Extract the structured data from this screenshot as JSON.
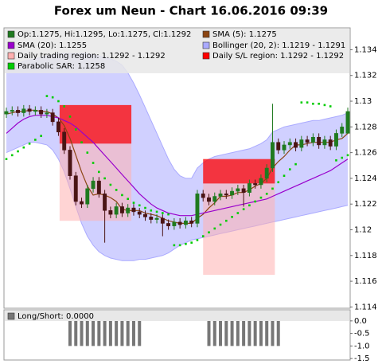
{
  "chart_data": [
    {
      "type": "candlestick",
      "title": "Forex um Neun - Chart 16.06.2016 09:39",
      "name": "Op:1.1275, Hi:1.1295, Lo:1.1275, Cl:1.1292",
      "up_color": "#1f7a1f",
      "down_color": "#4a1414",
      "ylim": [
        1.1139,
        1.1357
      ],
      "yticks": [
        1.114,
        1.116,
        1.118,
        1.12,
        1.122,
        1.124,
        1.126,
        1.128,
        1.13,
        1.132,
        1.134
      ],
      "grid": false,
      "open": [
        1.129,
        1.1292,
        1.1293,
        1.1291,
        1.1294,
        1.1292,
        1.1293,
        1.129,
        1.1291,
        1.1284,
        1.1276,
        1.1262,
        1.1242,
        1.1222,
        1.122,
        1.1232,
        1.1238,
        1.1228,
        1.1215,
        1.1212,
        1.1218,
        1.1213,
        1.1217,
        1.1214,
        1.1212,
        1.121,
        1.1208,
        1.1209,
        1.1205,
        1.1203,
        1.1206,
        1.1204,
        1.1207,
        1.1205,
        1.1228,
        1.1225,
        1.1222,
        1.1226,
        1.1228,
        1.1227,
        1.123,
        1.1232,
        1.1229,
        1.1236,
        1.1235,
        1.124,
        1.1248,
        1.1268,
        1.1262,
        1.1266,
        1.1268,
        1.1264,
        1.127,
        1.1268,
        1.1272,
        1.1266,
        1.127,
        1.1265,
        1.1275,
        1.1275
      ],
      "high": [
        1.1295,
        1.1296,
        1.1296,
        1.1297,
        1.1297,
        1.1296,
        1.1296,
        1.1294,
        1.1294,
        1.1287,
        1.1279,
        1.1265,
        1.1245,
        1.1225,
        1.1235,
        1.1241,
        1.1241,
        1.1231,
        1.1218,
        1.1221,
        1.1221,
        1.122,
        1.122,
        1.1217,
        1.1215,
        1.1213,
        1.1212,
        1.1212,
        1.1208,
        1.1209,
        1.1209,
        1.121,
        1.121,
        1.1231,
        1.1231,
        1.1228,
        1.1229,
        1.1231,
        1.1231,
        1.1233,
        1.1235,
        1.1235,
        1.1239,
        1.1239,
        1.1243,
        1.1251,
        1.1298,
        1.1271,
        1.1269,
        1.1271,
        1.1271,
        1.1273,
        1.1273,
        1.1275,
        1.1275,
        1.1273,
        1.1273,
        1.1278,
        1.1283,
        1.1295
      ],
      "low": [
        1.1287,
        1.1289,
        1.1288,
        1.1288,
        1.1289,
        1.1289,
        1.1287,
        1.1287,
        1.1281,
        1.1273,
        1.1259,
        1.1239,
        1.1219,
        1.1217,
        1.1217,
        1.1229,
        1.1225,
        1.119,
        1.1209,
        1.1209,
        1.121,
        1.121,
        1.1211,
        1.1209,
        1.1207,
        1.1205,
        1.1205,
        1.1195,
        1.12,
        1.12,
        1.1201,
        1.1201,
        1.1202,
        1.1202,
        1.1222,
        1.1219,
        1.1219,
        1.1223,
        1.1224,
        1.1224,
        1.1227,
        1.1218,
        1.1226,
        1.1232,
        1.1232,
        1.1237,
        1.1245,
        1.1259,
        1.1259,
        1.1263,
        1.1261,
        1.1261,
        1.1265,
        1.1265,
        1.1263,
        1.1263,
        1.1262,
        1.1262,
        1.1272,
        1.1275
      ],
      "close": [
        1.1292,
        1.1293,
        1.1291,
        1.1294,
        1.1292,
        1.1293,
        1.129,
        1.1291,
        1.1284,
        1.1276,
        1.1262,
        1.1242,
        1.1222,
        1.122,
        1.1232,
        1.1238,
        1.1228,
        1.1215,
        1.1212,
        1.1218,
        1.1213,
        1.1217,
        1.1214,
        1.1212,
        1.121,
        1.1208,
        1.1209,
        1.1205,
        1.1203,
        1.1206,
        1.1204,
        1.1207,
        1.1205,
        1.1228,
        1.1225,
        1.1222,
        1.1226,
        1.1228,
        1.1227,
        1.123,
        1.1232,
        1.1229,
        1.1236,
        1.1235,
        1.124,
        1.1248,
        1.1268,
        1.1262,
        1.1266,
        1.1268,
        1.1264,
        1.127,
        1.1268,
        1.1272,
        1.1266,
        1.127,
        1.1265,
        1.1275,
        1.128,
        1.1292
      ],
      "series": [
        {
          "name": "SMA (5): 1.1275",
          "color": "#8b4513",
          "values": [
            1.129,
            1.1291,
            1.1292,
            1.1292,
            1.1293,
            1.1293,
            1.1292,
            1.1292,
            1.129,
            1.1287,
            1.1281,
            1.1271,
            1.1258,
            1.1245,
            1.1234,
            1.1227,
            1.1228,
            1.1227,
            1.1225,
            1.1222,
            1.1216,
            1.1215,
            1.1215,
            1.1215,
            1.1213,
            1.1212,
            1.1211,
            1.1209,
            1.1207,
            1.1206,
            1.1205,
            1.1205,
            1.1205,
            1.1209,
            1.1212,
            1.1217,
            1.1221,
            1.1226,
            1.1226,
            1.1227,
            1.1229,
            1.1229,
            1.1231,
            1.1234,
            1.1236,
            1.124,
            1.1248,
            1.1253,
            1.1257,
            1.1262,
            1.1266,
            1.1266,
            1.1267,
            1.1268,
            1.1268,
            1.1268,
            1.1268,
            1.127,
            1.1271,
            1.1275
          ]
        },
        {
          "name": "SMA (20): 1.1255",
          "color": "#9900cc",
          "values": [
            1.1275,
            1.1279,
            1.1283,
            1.1286,
            1.1288,
            1.1289,
            1.1289,
            1.1289,
            1.1288,
            1.1287,
            1.1285,
            1.1283,
            1.128,
            1.1276,
            1.1272,
            1.1268,
            1.1263,
            1.1258,
            1.1253,
            1.1248,
            1.1243,
            1.1238,
            1.1233,
            1.1228,
            1.1224,
            1.122,
            1.1217,
            1.1215,
            1.1213,
            1.1212,
            1.1211,
            1.1211,
            1.1211,
            1.1212,
            1.1213,
            1.1214,
            1.1215,
            1.1216,
            1.1217,
            1.1218,
            1.1219,
            1.122,
            1.1221,
            1.1222,
            1.1223,
            1.1224,
            1.1226,
            1.1228,
            1.123,
            1.1232,
            1.1234,
            1.1236,
            1.1238,
            1.124,
            1.1242,
            1.1244,
            1.1246,
            1.1249,
            1.1252,
            1.1255
          ]
        }
      ],
      "bollinger": {
        "name": "Bollinger (20, 2): 1.1219 - 1.1291",
        "color": "#aaaaff",
        "upper": [
          1.1325,
          1.1327,
          1.1329,
          1.1331,
          1.1332,
          1.1333,
          1.1334,
          1.1335,
          1.1336,
          1.1337,
          1.1337,
          1.1337,
          1.1337,
          1.1337,
          1.1337,
          1.1336,
          1.1335,
          1.1334,
          1.1333,
          1.1331,
          1.1328,
          1.1322,
          1.1314,
          1.1305,
          1.1295,
          1.1285,
          1.1275,
          1.1265,
          1.1255,
          1.1247,
          1.1242,
          1.124,
          1.124,
          1.1248,
          1.1252,
          1.1255,
          1.1257,
          1.1258,
          1.1259,
          1.126,
          1.1261,
          1.1262,
          1.1263,
          1.1265,
          1.1267,
          1.127,
          1.1276,
          1.1278,
          1.128,
          1.1281,
          1.1282,
          1.1283,
          1.1284,
          1.1285,
          1.1285,
          1.1286,
          1.1287,
          1.1288,
          1.1289,
          1.1291
        ],
        "lower": [
          1.126,
          1.1262,
          1.1264,
          1.1266,
          1.1268,
          1.1268,
          1.1267,
          1.1266,
          1.1262,
          1.1255,
          1.1245,
          1.1232,
          1.1218,
          1.1205,
          1.1195,
          1.1188,
          1.1183,
          1.118,
          1.1178,
          1.1177,
          1.1176,
          1.1176,
          1.1176,
          1.1177,
          1.1177,
          1.1178,
          1.1179,
          1.118,
          1.1182,
          1.1185,
          1.1188,
          1.119,
          1.1192,
          1.1193,
          1.1194,
          1.1195,
          1.1196,
          1.1197,
          1.1198,
          1.1199,
          1.12,
          1.1201,
          1.1202,
          1.1203,
          1.1204,
          1.1205,
          1.1206,
          1.1207,
          1.1208,
          1.1209,
          1.121,
          1.1211,
          1.1212,
          1.1213,
          1.1214,
          1.1215,
          1.1216,
          1.1217,
          1.1218,
          1.1219
        ]
      },
      "regions": [
        {
          "name": "Daily trading region: 1.1292 - 1.1292",
          "color": "#ffb0b0",
          "rects": [
            {
              "start": 9.2,
              "end": 21.6,
              "top": 1.1267,
              "bottom": 1.1207
            },
            {
              "start": 34,
              "end": 46.4,
              "top": 1.1236,
              "bottom": 1.1165
            }
          ]
        },
        {
          "name": "Daily S/L region: 1.1292 - 1.1292",
          "color": "#ff0000",
          "rects": [
            {
              "start": 9.2,
              "end": 21.6,
              "top": 1.1297,
              "bottom": 1.1267
            },
            {
              "start": 34,
              "end": 46.4,
              "top": 1.1255,
              "bottom": 1.1236
            }
          ]
        }
      ],
      "sar": {
        "name": "Parabolic SAR: 1.1258",
        "color": "#00cc00",
        "values": [
          1.1255,
          1.1258,
          1.1261,
          1.1264,
          1.1267,
          1.127,
          1.1273,
          1.1304,
          1.1303,
          1.13,
          1.1296,
          1.1288,
          1.1278,
          1.1268,
          1.126,
          1.1252,
          1.1245,
          1.124,
          1.1235,
          1.1231,
          1.1227,
          1.1224,
          1.1221,
          1.1219,
          1.1217,
          1.1215,
          1.1214,
          1.1213,
          1.1212,
          1.1188,
          1.1188,
          1.1189,
          1.119,
          1.1192,
          1.1195,
          1.1198,
          1.1201,
          1.1204,
          1.1207,
          1.121,
          1.1213,
          1.1216,
          1.1219,
          1.1222,
          1.1225,
          1.1228,
          1.1232,
          1.1237,
          1.1242,
          1.1247,
          1.1251,
          1.1299,
          1.1299,
          1.1298,
          1.1298,
          1.1297,
          1.1296,
          1.1254,
          1.1256,
          1.1258
        ]
      }
    },
    {
      "type": "bar",
      "name": "Long/Short: 0.0000",
      "color": "#777777",
      "ylim": [
        -1.56,
        0.44
      ],
      "yticks": [
        {
          "value": 0,
          "label": "0.0"
        },
        -0.5,
        {
          "value": -1,
          "label": "-1.0"
        },
        -1.5
      ],
      "values": [
        0,
        0,
        0,
        0,
        0,
        0,
        0,
        0,
        0,
        0,
        0,
        -1,
        -1,
        -1,
        -1,
        -1,
        -1,
        -1,
        -1,
        -1,
        -1,
        -1,
        -1,
        -1,
        0,
        0,
        0,
        0,
        0,
        0,
        0,
        0,
        0,
        0,
        0,
        -1,
        -1,
        -1,
        -1,
        -1,
        -1,
        -1,
        -1,
        -1,
        -1,
        -1,
        -1,
        -1,
        0,
        0,
        0,
        0,
        0,
        0,
        0,
        0,
        0,
        0,
        0,
        0
      ]
    }
  ]
}
